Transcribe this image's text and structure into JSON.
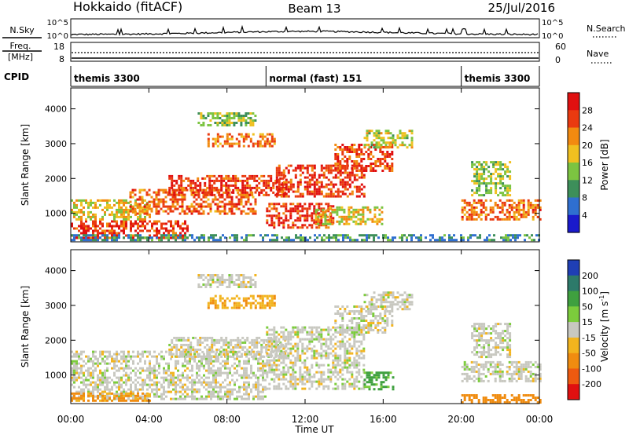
{
  "header": {
    "station": "Hokkaido (fitACF)",
    "beam": "Beam 13",
    "date": "25/Jul/2016"
  },
  "noise_panel": {
    "left_label": "N.Sky",
    "right_label": "N.Search",
    "left_ticks": [
      "10^5",
      "10^0"
    ],
    "right_ticks": [
      "10^5",
      "10^0"
    ]
  },
  "freq_panel": {
    "left_label_line1": "Freq.",
    "left_label_line2": "[MHz]",
    "left_ticks": [
      "18",
      "8"
    ],
    "right_label": "Nave",
    "right_ticks": [
      "60",
      "0"
    ]
  },
  "cpid_panel": {
    "label": "CPID",
    "segments": [
      {
        "name": "themis 3300",
        "start_hour": 0.0,
        "end_hour": 10.0
      },
      {
        "name": "normal (fast) 151",
        "start_hour": 10.0,
        "end_hour": 20.0
      },
      {
        "name": "themis 3300",
        "start_hour": 20.0,
        "end_hour": 24.0
      }
    ]
  },
  "time_axis": {
    "label": "Time UT",
    "ticks": [
      "00:00",
      "04:00",
      "08:00",
      "12:00",
      "16:00",
      "20:00",
      "00:00"
    ],
    "range_hours": [
      0,
      24
    ]
  },
  "chart_data": [
    {
      "type": "heatmap",
      "title": "",
      "xlabel": "Time UT",
      "ylabel": "Slant Range [km]",
      "xlim_hours": [
        0,
        24
      ],
      "ylim": [
        180,
        4600
      ],
      "yticks": [
        1000,
        2000,
        3000,
        4000
      ],
      "colorbar": {
        "label": "Power [dB]",
        "ticks": [
          "4",
          "8",
          "12",
          "16",
          "20",
          "24",
          "28"
        ],
        "range": [
          0,
          32
        ],
        "colors": [
          "#1a1acc",
          "#2f6fd0",
          "#3d8f5a",
          "#7cc441",
          "#f0c020",
          "#f28a10",
          "#ea3a10",
          "#e01010"
        ]
      },
      "echo_regions": [
        {
          "start_hour": 0.0,
          "end_hour": 6.0,
          "range_min": 300,
          "range_max": 800,
          "level": 27
        },
        {
          "start_hour": 0.0,
          "end_hour": 4.0,
          "range_min": 800,
          "range_max": 1400,
          "level": 18
        },
        {
          "start_hour": 3.0,
          "end_hour": 9.5,
          "range_min": 1000,
          "range_max": 1700,
          "level": 24
        },
        {
          "start_hour": 5.0,
          "end_hour": 11.0,
          "range_min": 1500,
          "range_max": 2100,
          "level": 27
        },
        {
          "start_hour": 10.0,
          "end_hour": 13.5,
          "range_min": 600,
          "range_max": 1300,
          "level": 27
        },
        {
          "start_hour": 10.5,
          "end_hour": 15.0,
          "range_min": 1500,
          "range_max": 2400,
          "level": 27
        },
        {
          "start_hour": 13.5,
          "end_hour": 16.5,
          "range_min": 2200,
          "range_max": 3000,
          "level": 26
        },
        {
          "start_hour": 7.0,
          "end_hour": 10.5,
          "range_min": 2900,
          "range_max": 3300,
          "level": 23
        },
        {
          "start_hour": 6.5,
          "end_hour": 9.5,
          "range_min": 3500,
          "range_max": 3900,
          "level": 14
        },
        {
          "start_hour": 15.0,
          "end_hour": 17.5,
          "range_min": 2900,
          "range_max": 3400,
          "level": 16
        },
        {
          "start_hour": 12.5,
          "end_hour": 16.0,
          "range_min": 700,
          "range_max": 1200,
          "level": 18
        },
        {
          "start_hour": 20.0,
          "end_hour": 24.0,
          "range_min": 800,
          "range_max": 1400,
          "level": 24
        },
        {
          "start_hour": 20.5,
          "end_hour": 22.5,
          "range_min": 1500,
          "range_max": 2500,
          "level": 15
        },
        {
          "start_hour": 0.0,
          "end_hour": 24.0,
          "range_min": 200,
          "range_max": 400,
          "level": 9
        }
      ]
    },
    {
      "type": "heatmap",
      "title": "",
      "xlabel": "Time UT",
      "ylabel": "Slant Range [km]",
      "xlim_hours": [
        0,
        24
      ],
      "ylim": [
        180,
        4600
      ],
      "yticks": [
        1000,
        2000,
        3000,
        4000
      ],
      "colorbar": {
        "label": "Velocity [m s^-1]",
        "ticks": [
          "200",
          "100",
          "50",
          "15",
          "-15",
          "-50",
          "-100",
          "-200"
        ],
        "range": [
          -250,
          250
        ],
        "colors": [
          "#1f3fb5",
          "#2d7a6a",
          "#3fa03f",
          "#7ccc3c",
          "#c8c8c0",
          "#f2b41e",
          "#f08c10",
          "#ee5a10",
          "#e01010"
        ]
      },
      "echo_regions": [
        {
          "start_hour": 0.0,
          "end_hour": 10.0,
          "range_min": 300,
          "range_max": 1700,
          "velocity": 0
        },
        {
          "start_hour": 0.0,
          "end_hour": 4.0,
          "range_min": 250,
          "range_max": 500,
          "velocity": -60
        },
        {
          "start_hour": 5.0,
          "end_hour": 11.0,
          "range_min": 1500,
          "range_max": 2100,
          "velocity": 0
        },
        {
          "start_hour": 10.0,
          "end_hour": 15.0,
          "range_min": 600,
          "range_max": 2400,
          "velocity": 0
        },
        {
          "start_hour": 13.5,
          "end_hour": 16.5,
          "range_min": 2200,
          "range_max": 3000,
          "velocity": 0
        },
        {
          "start_hour": 7.0,
          "end_hour": 10.5,
          "range_min": 2900,
          "range_max": 3300,
          "velocity": -40
        },
        {
          "start_hour": 6.5,
          "end_hour": 9.5,
          "range_min": 3500,
          "range_max": 3900,
          "velocity": 0
        },
        {
          "start_hour": 15.0,
          "end_hour": 17.5,
          "range_min": 2900,
          "range_max": 3400,
          "velocity": 0
        },
        {
          "start_hour": 15.0,
          "end_hour": 16.5,
          "range_min": 600,
          "range_max": 1100,
          "velocity": 60
        },
        {
          "start_hour": 20.0,
          "end_hour": 24.0,
          "range_min": 800,
          "range_max": 1400,
          "velocity": 0
        },
        {
          "start_hour": 20.5,
          "end_hour": 22.5,
          "range_min": 1500,
          "range_max": 2500,
          "velocity": 0
        },
        {
          "start_hour": 20.0,
          "end_hour": 24.0,
          "range_min": 220,
          "range_max": 450,
          "velocity": -80
        }
      ]
    }
  ]
}
